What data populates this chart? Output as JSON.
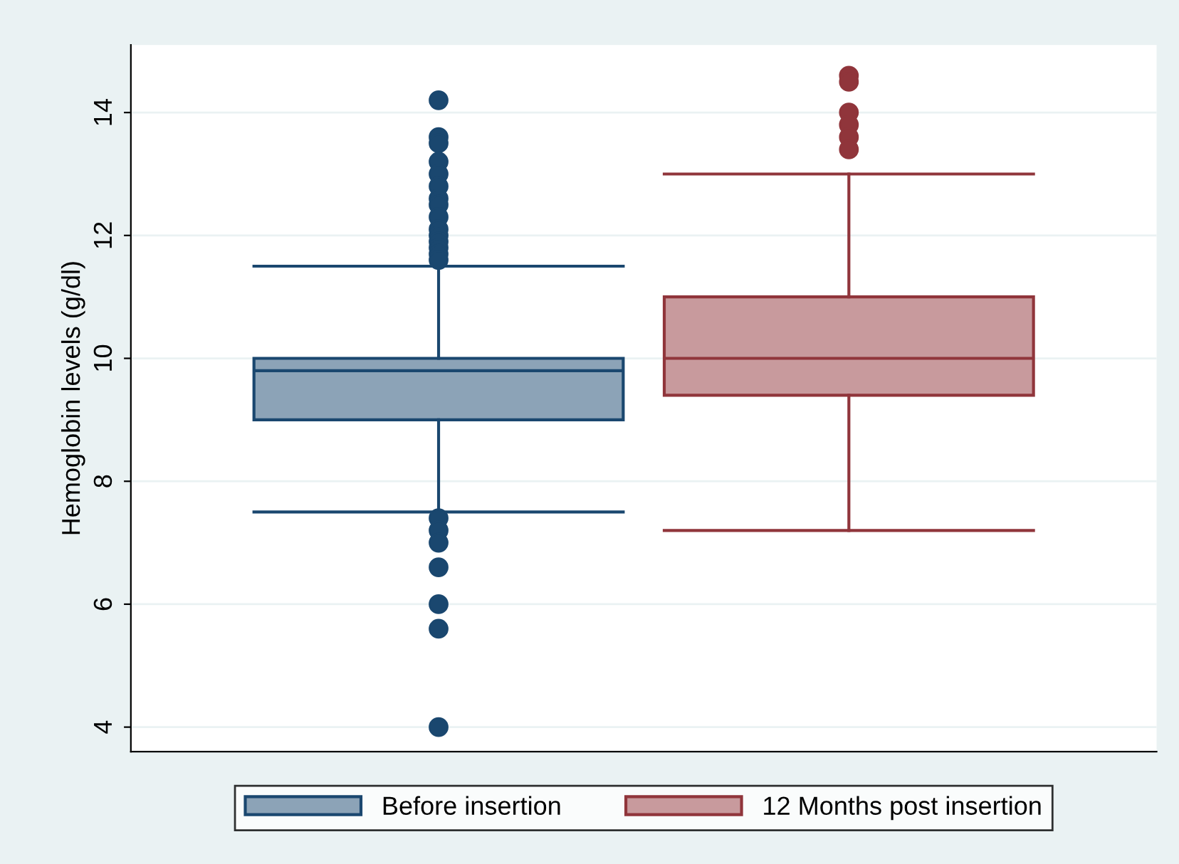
{
  "chart_data": {
    "type": "box",
    "ylabel": "Hemoglobin levels (g/dl)",
    "categories": [
      null
    ],
    "series": [
      {
        "name": "Before insertion",
        "color": "#1a476f",
        "boxes": [
          {
            "low": 7.5,
            "q1": 9.0,
            "median": 9.8,
            "q3": 10.0,
            "high": 11.5,
            "outliers": [
              14.2,
              13.6,
              13.5,
              13.2,
              13.0,
              12.8,
              12.6,
              12.5,
              12.3,
              12.1,
              12.0,
              11.9,
              11.8,
              11.7,
              11.6,
              7.4,
              7.2,
              7.0,
              6.6,
              6.0,
              5.6,
              4.0
            ]
          }
        ]
      },
      {
        "name": "12 Months post insertion",
        "color": "#90353b",
        "boxes": [
          {
            "low": 7.2,
            "q1": 9.4,
            "median": 10.0,
            "q3": 11.0,
            "high": 13.0,
            "outliers": [
              14.6,
              14.5,
              14.0,
              13.8,
              13.6,
              13.4
            ]
          }
        ]
      }
    ],
    "ylim": [
      3.6,
      15.1
    ],
    "yticks": [
      4,
      6,
      8,
      10,
      12,
      14
    ],
    "grid": "y",
    "legend": "bottom",
    "marker": "circle"
  }
}
